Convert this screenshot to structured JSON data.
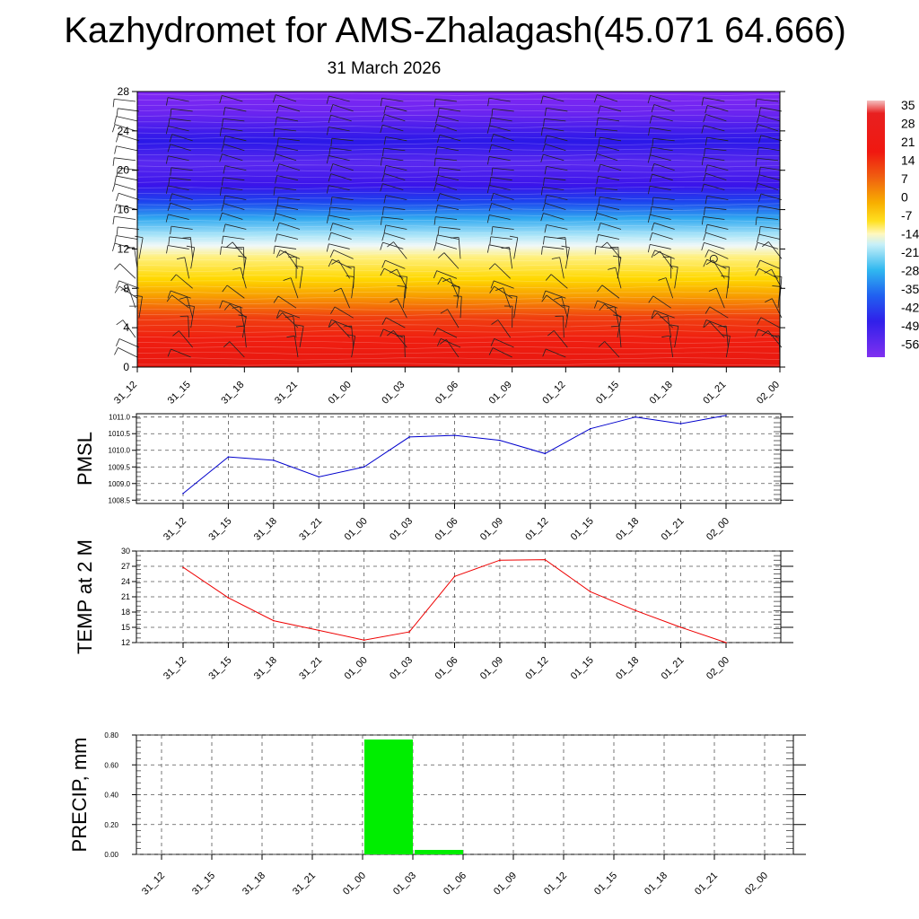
{
  "header": {
    "title": "Kazhydromet for AMS-Zhalagash(45.071 64.666)",
    "subtitle": "31 March 2026"
  },
  "colors": {
    "pmsl_line": "#0000cc",
    "temp_line": "#ee0000",
    "precip_bar": "#00ee00",
    "grid": "#555555"
  },
  "chart_data": [
    {
      "type": "heatmap",
      "title": "",
      "xlabel": "",
      "ylabel": "",
      "x": [
        "31_12",
        "31_15",
        "31_18",
        "31_21",
        "01_00",
        "01_03",
        "01_06",
        "01_09",
        "01_12",
        "01_15",
        "01_18",
        "01_21",
        "02_00"
      ],
      "y_ticks": [
        0,
        4,
        8,
        12,
        16,
        20,
        24,
        28
      ],
      "ylim": [
        0,
        28
      ],
      "colorbar": {
        "labels": [
          "35",
          "28",
          "21",
          "14",
          "7",
          "0",
          "-7",
          "-14",
          "-21",
          "-28",
          "-35",
          "-42",
          "-49",
          "-56"
        ],
        "values": [
          35,
          28,
          21,
          14,
          7,
          0,
          -7,
          -14,
          -21,
          -28,
          -35,
          -42,
          -49,
          -56
        ]
      },
      "temperature_profile": [
        {
          "level": 0,
          "value": 30
        },
        {
          "level": 2,
          "value": 24
        },
        {
          "level": 4,
          "value": 18
        },
        {
          "level": 6,
          "value": 12
        },
        {
          "level": 8,
          "value": 6
        },
        {
          "level": 10,
          "value": 0
        },
        {
          "level": 11.5,
          "value": -6
        },
        {
          "level": 12.5,
          "value": -14
        },
        {
          "level": 14,
          "value": -24
        },
        {
          "level": 16,
          "value": -36
        },
        {
          "level": 18,
          "value": -52
        },
        {
          "level": 20,
          "value": -54
        },
        {
          "level": 22,
          "value": -58
        },
        {
          "level": 24,
          "value": -58
        },
        {
          "level": 26,
          "value": -55
        },
        {
          "level": 28,
          "value": -54
        }
      ],
      "wind_barbs": true
    },
    {
      "type": "line",
      "ylabel": "PMSL",
      "x": [
        "31_12",
        "31_15",
        "31_18",
        "31_21",
        "01_00",
        "01_03",
        "01_06",
        "01_09",
        "01_12",
        "01_15",
        "01_18",
        "01_21",
        "02_00"
      ],
      "series": [
        {
          "values": [
            1008.7,
            1009.8,
            1009.7,
            1009.2,
            1009.5,
            1010.4,
            1010.45,
            1010.3,
            1009.9,
            1010.65,
            1011.0,
            1010.8,
            1011.05
          ]
        }
      ],
      "ylim": [
        1008.4,
        1011.1
      ],
      "y_ticks": [
        "1008.5",
        "1009.0",
        "1009.5",
        "1010.0",
        "1010.5",
        "1011.0"
      ],
      "grid": true
    },
    {
      "type": "line",
      "ylabel": "TEMP at 2 M",
      "x": [
        "31_12",
        "31_15",
        "31_18",
        "31_21",
        "01_00",
        "01_03",
        "01_06",
        "01_09",
        "01_12",
        "01_15",
        "01_18",
        "01_21",
        "02_00"
      ],
      "series": [
        {
          "values": [
            26.8,
            20.8,
            16.3,
            14.4,
            12.5,
            14.1,
            25.0,
            28.2,
            28.3,
            22.0,
            18.3,
            15.0,
            12.0
          ]
        }
      ],
      "ylim": [
        12,
        30
      ],
      "y_ticks": [
        "12",
        "15",
        "18",
        "21",
        "24",
        "27",
        "30"
      ],
      "grid": true
    },
    {
      "type": "bar",
      "ylabel": "PRECIP, mm",
      "categories": [
        "31_12",
        "31_15",
        "31_18",
        "31_21",
        "01_00",
        "01_03",
        "01_06",
        "01_09",
        "01_12",
        "01_15",
        "01_18",
        "01_21",
        "02_00"
      ],
      "values": [
        0,
        0,
        0,
        0,
        0,
        0.77,
        0.03,
        0,
        0,
        0,
        0,
        0,
        0
      ],
      "ylim": [
        0,
        0.8
      ],
      "y_ticks": [
        "0.00",
        "0.20",
        "0.40",
        "0.60",
        "0.80"
      ],
      "grid": true
    }
  ]
}
